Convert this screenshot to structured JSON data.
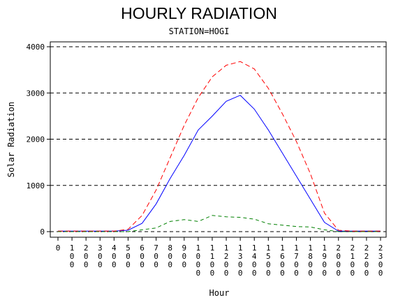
{
  "chart_data": {
    "type": "line",
    "title": "HOURLY RADIATION",
    "subtitle": "STATION=HOGI",
    "xlabel": "Hour",
    "ylabel": "Solar Radiation",
    "ylim": [
      0,
      4000
    ],
    "yticks": [
      0,
      1000,
      2000,
      3000,
      4000
    ],
    "grid": "horizontal dashed",
    "x": [
      0,
      100,
      200,
      300,
      400,
      500,
      600,
      700,
      800,
      900,
      1000,
      1100,
      1200,
      1300,
      1400,
      1500,
      1600,
      1700,
      1800,
      1900,
      2000,
      2100,
      2200,
      2300
    ],
    "x_tick_labels": [
      "0",
      "100",
      "200",
      "300",
      "400",
      "500",
      "600",
      "700",
      "800",
      "900",
      "1000",
      "1100",
      "1200",
      "1300",
      "1400",
      "1500",
      "1600",
      "1700",
      "1800",
      "1900",
      "2000",
      "2100",
      "2200",
      "2300"
    ],
    "series": [
      {
        "color": "#0000ff",
        "dash": "solid",
        "values": [
          10,
          10,
          10,
          10,
          10,
          30,
          180,
          600,
          1150,
          1650,
          2200,
          2500,
          2820,
          2950,
          2650,
          2200,
          1700,
          1200,
          700,
          200,
          10,
          10,
          10,
          10
        ]
      },
      {
        "color": "#ff0000",
        "dash": "long-dash",
        "values": [
          10,
          10,
          10,
          10,
          10,
          50,
          350,
          900,
          1600,
          2300,
          2900,
          3350,
          3600,
          3680,
          3520,
          3100,
          2550,
          1950,
          1250,
          400,
          30,
          10,
          10,
          10
        ]
      },
      {
        "color": "#008000",
        "dash": "dash",
        "values": [
          0,
          0,
          0,
          0,
          0,
          0,
          40,
          80,
          220,
          260,
          220,
          350,
          320,
          310,
          270,
          170,
          140,
          110,
          100,
          40,
          0,
          0,
          0,
          0
        ]
      }
    ]
  }
}
